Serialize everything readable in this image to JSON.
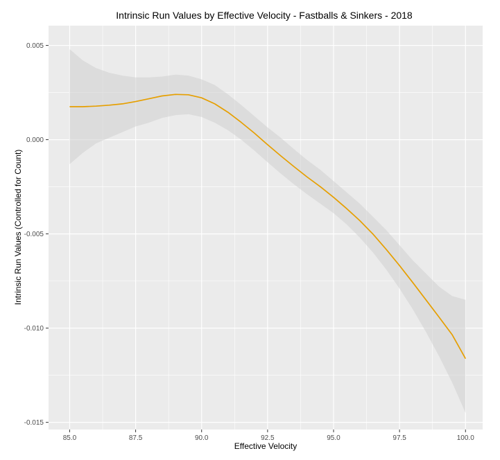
{
  "chart_data": {
    "type": "line",
    "title": "Intrinsic Run Values by Effective Velocity - Fastballs & Sinkers - 2018",
    "xlabel": "Effective Velocity",
    "ylabel": "Intrinsic Run Values (Controlled for Count)",
    "xlim": [
      84.2,
      100.65
    ],
    "ylim": [
      -0.01538,
      0.00605
    ],
    "x_ticks": [
      85.0,
      87.5,
      90.0,
      92.5,
      95.0,
      97.5,
      100.0
    ],
    "x_tick_labels": [
      "85.0",
      "87.5",
      "90.0",
      "92.5",
      "95.0",
      "97.5",
      "100.0"
    ],
    "y_ticks": [
      0.005,
      0.0,
      -0.005,
      -0.01,
      -0.015
    ],
    "y_tick_labels": [
      "0.005",
      "0.000",
      "-0.005",
      "-0.010",
      "-0.015"
    ],
    "grid": true,
    "colors": {
      "line": "#E69F00",
      "ribbon": "#cfcfcf",
      "panel": "#ebebeb",
      "grid": "#ffffff"
    },
    "series": [
      {
        "x": [
          85.0,
          85.5,
          86.0,
          86.5,
          87.0,
          87.5,
          88.0,
          88.5,
          89.0,
          89.5,
          90.0,
          90.5,
          91.0,
          91.5,
          92.0,
          92.5,
          93.0,
          93.5,
          94.0,
          94.5,
          95.0,
          95.5,
          96.0,
          96.5,
          97.0,
          97.5,
          98.0,
          98.5,
          99.0,
          99.5,
          100.0
        ],
        "y": [
          0.00175,
          0.00175,
          0.00178,
          0.00183,
          0.0019,
          0.00202,
          0.00217,
          0.00232,
          0.0024,
          0.00238,
          0.00222,
          0.0019,
          0.00145,
          0.00092,
          0.00035,
          -0.00027,
          -0.00086,
          -0.00143,
          -0.00198,
          -0.0025,
          -0.00306,
          -0.00366,
          -0.0043,
          -0.00502,
          -0.00583,
          -0.00668,
          -0.00758,
          -0.0085,
          -0.00942,
          -0.01036,
          -0.01162
        ],
        "lower": [
          -0.0013,
          -0.0007,
          -0.0002,
          0.0001,
          0.0004,
          0.0007,
          0.0009,
          0.00115,
          0.0013,
          0.00135,
          0.0012,
          0.0009,
          0.0005,
          0.0,
          -0.00058,
          -0.0012,
          -0.0018,
          -0.00237,
          -0.0029,
          -0.0034,
          -0.0039,
          -0.0045,
          -0.0052,
          -0.006,
          -0.0069,
          -0.0079,
          -0.009,
          -0.0102,
          -0.0115,
          -0.0129,
          -0.0145
        ],
        "upper": [
          0.0048,
          0.0042,
          0.0038,
          0.00355,
          0.0034,
          0.0033,
          0.0033,
          0.00335,
          0.00345,
          0.0034,
          0.0032,
          0.0029,
          0.0024,
          0.00184,
          0.00125,
          0.00065,
          0.0001,
          -0.0005,
          -0.00108,
          -0.0016,
          -0.0022,
          -0.0028,
          -0.0034,
          -0.0041,
          -0.0048,
          -0.0056,
          -0.0064,
          -0.0071,
          -0.0078,
          -0.0083,
          -0.0085
        ]
      }
    ]
  }
}
